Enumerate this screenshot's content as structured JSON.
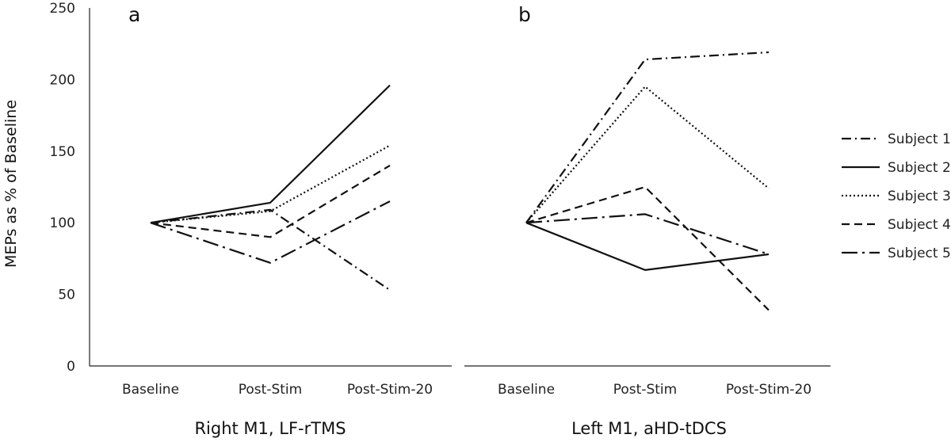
{
  "chart_data": [
    {
      "type": "line",
      "panel_label": "a",
      "xlabel": "Right M1, LF-rTMS",
      "ylabel": "MEPs as % of Baseline",
      "categories": [
        "Baseline",
        "Post-Stim",
        "Post-Stim-20"
      ],
      "ylim": [
        0,
        250
      ],
      "yticks": [
        0,
        50,
        100,
        150,
        200,
        250
      ],
      "grid": false,
      "series": [
        {
          "name": "Subject 1",
          "values": [
            100,
            109,
            53
          ]
        },
        {
          "name": "Subject 2",
          "values": [
            100,
            114,
            196
          ]
        },
        {
          "name": "Subject 3",
          "values": [
            100,
            108,
            154
          ]
        },
        {
          "name": "Subject 4",
          "values": [
            100,
            90,
            140
          ]
        },
        {
          "name": "Subject 5",
          "values": [
            100,
            72,
            115
          ]
        }
      ]
    },
    {
      "type": "line",
      "panel_label": "b",
      "xlabel": "Left M1, aHD-tDCS",
      "ylabel": "",
      "categories": [
        "Baseline",
        "Post-Stim",
        "Post-Stim-20"
      ],
      "ylim": [
        0,
        250
      ],
      "grid": false,
      "series": [
        {
          "name": "Subject 1",
          "values": [
            100,
            214,
            219
          ]
        },
        {
          "name": "Subject 2",
          "values": [
            100,
            67,
            78
          ]
        },
        {
          "name": "Subject 3",
          "values": [
            100,
            195,
            124
          ]
        },
        {
          "name": "Subject 4",
          "values": [
            100,
            125,
            39
          ]
        },
        {
          "name": "Subject 5",
          "values": [
            100,
            106,
            78
          ]
        }
      ]
    }
  ],
  "legend": {
    "placement": "right",
    "items": [
      {
        "label": "Subject 1",
        "dash": "12,5,2,5"
      },
      {
        "label": "Subject 2",
        "dash": "none"
      },
      {
        "label": "Subject 3",
        "dash": "2,3"
      },
      {
        "label": "Subject 4",
        "dash": "10,6"
      },
      {
        "label": "Subject 5",
        "dash": "20,6,3,6"
      }
    ]
  }
}
